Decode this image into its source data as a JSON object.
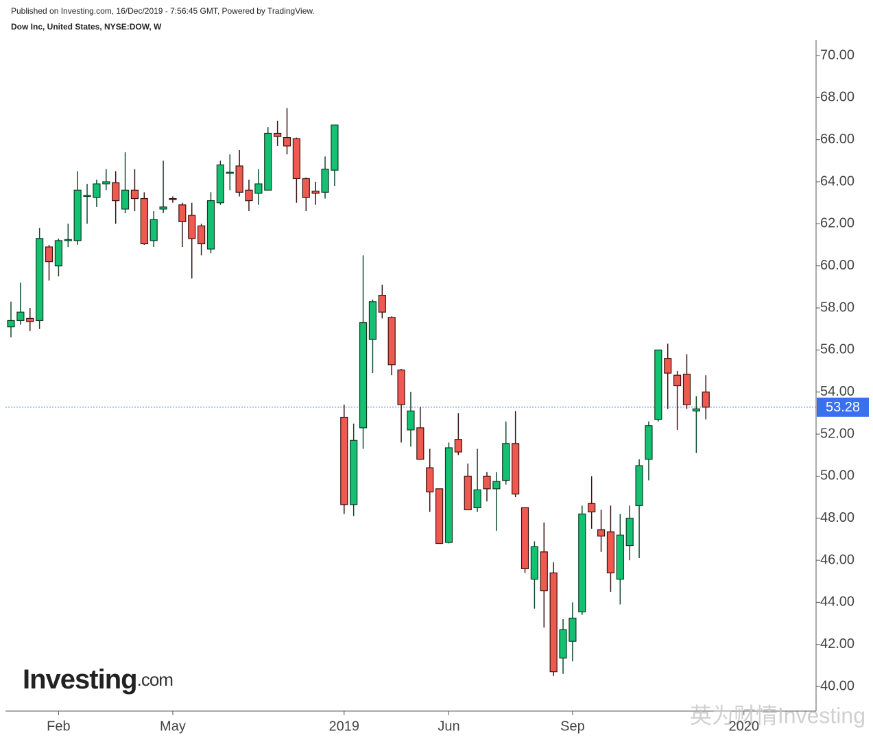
{
  "chart_data": {
    "type": "candlestick",
    "published": "Published on Investing.com, 16/Dec/2019 - 7:56:45 GMT, Powered by TradingView.",
    "title": "Dow Inc, United States, NYSE:DOW, W",
    "logo": "Investing",
    "logo_suffix": ".com",
    "watermark": "英为财情Investing",
    "up_color": "#14c172",
    "down_color": "#ef5a50",
    "last_price": 53.28,
    "last_price_color": "#3a6ff0",
    "ylim": [
      38.83,
      70.75
    ],
    "yticks": [
      {
        "value": 40,
        "label": "40.00"
      },
      {
        "value": 42,
        "label": "42.00"
      },
      {
        "value": 44,
        "label": "44.00"
      },
      {
        "value": 46,
        "label": "46.00"
      },
      {
        "value": 48,
        "label": "48.00"
      },
      {
        "value": 50,
        "label": "50.00"
      },
      {
        "value": 52,
        "label": "52.00"
      },
      {
        "value": 54,
        "label": "54.00"
      },
      {
        "value": 56,
        "label": "56.00"
      },
      {
        "value": 58,
        "label": "58.00"
      },
      {
        "value": 60,
        "label": "60.00"
      },
      {
        "value": 62,
        "label": "62.00"
      },
      {
        "value": 64,
        "label": "64.00"
      },
      {
        "value": 66,
        "label": "66.00"
      },
      {
        "value": 68,
        "label": "68.00"
      },
      {
        "value": 70,
        "label": "70.00"
      }
    ],
    "categories": [
      null,
      null,
      null,
      null,
      null,
      "Feb",
      null,
      null,
      null,
      null,
      null,
      null,
      null,
      null,
      null,
      null,
      null,
      "May",
      null,
      null,
      null,
      null,
      null,
      null,
      null,
      null,
      null,
      null,
      null,
      null,
      null,
      null,
      null,
      null,
      null,
      "2019",
      null,
      null,
      null,
      null,
      null,
      null,
      null,
      null,
      null,
      null,
      "Jun",
      null,
      null,
      null,
      null,
      null,
      null,
      null,
      null,
      null,
      null,
      null,
      null,
      "Sep",
      null,
      null,
      null,
      null,
      null,
      null,
      null,
      null,
      null,
      null,
      null,
      null,
      null,
      null,
      null,
      null,
      null,
      "2020",
      null,
      null,
      null,
      null,
      null,
      null,
      null
    ],
    "open": [
      57.1,
      57.4,
      57.5,
      57.4,
      60.9,
      60.0,
      61.2,
      61.2,
      63.3,
      63.25,
      63.9,
      63.95,
      62.7,
      63.6,
      63.2,
      61.2,
      62.7,
      63.2,
      62.9,
      62.4,
      61.9,
      60.8,
      63.0,
      64.4,
      64.75,
      63.6,
      63.45,
      63.6,
      66.3,
      66.1,
      66.05,
      64.15,
      63.55,
      63.5,
      64.55,
      52.8,
      48.65,
      52.3,
      56.5,
      58.6,
      57.55,
      55.05,
      52.2,
      52.3,
      50.4,
      49.4,
      46.85,
      51.75,
      50.0,
      48.5,
      50.0,
      49.4,
      49.8,
      51.55,
      48.5,
      45.1,
      46.4,
      45.4,
      41.35,
      42.15,
      43.55,
      48.7,
      47.45,
      47.35,
      45.1,
      46.7,
      48.6,
      50.8,
      52.7,
      55.6,
      54.8,
      54.85,
      53.1,
      54.0,
      null,
      null,
      null,
      null,
      null,
      null,
      null,
      null,
      null,
      null,
      null
    ],
    "high": [
      58.3,
      59.2,
      58.0,
      61.8,
      61.0,
      61.3,
      62.0,
      64.5,
      63.9,
      64.1,
      64.6,
      64.5,
      65.4,
      64.6,
      63.5,
      62.6,
      65.0,
      63.3,
      63.0,
      63.0,
      62.0,
      63.5,
      65.0,
      65.3,
      65.5,
      64.1,
      64.6,
      66.6,
      66.9,
      67.5,
      66.1,
      64.2,
      64.0,
      65.2,
      66.7,
      53.4,
      52.5,
      60.5,
      58.4,
      59.1,
      57.6,
      55.1,
      54.0,
      53.3,
      51.3,
      49.4,
      51.6,
      53.0,
      50.6,
      51.3,
      50.2,
      50.2,
      52.6,
      53.1,
      48.5,
      46.9,
      47.8,
      45.9,
      43.2,
      44.0,
      48.6,
      50.0,
      48.4,
      48.6,
      48.2,
      48.6,
      50.8,
      52.6,
      56.0,
      56.3,
      55.0,
      55.8,
      53.8,
      54.8,
      null,
      null,
      null,
      null,
      null,
      null,
      null,
      null,
      null,
      null,
      null
    ],
    "low": [
      56.6,
      57.2,
      56.9,
      57.0,
      59.3,
      59.5,
      60.9,
      61.0,
      62.0,
      62.8,
      63.6,
      62.0,
      62.5,
      62.6,
      61.0,
      60.9,
      62.5,
      63.0,
      60.9,
      59.4,
      60.5,
      60.6,
      62.9,
      63.6,
      63.3,
      62.6,
      62.9,
      63.6,
      65.7,
      65.3,
      63.0,
      62.6,
      62.9,
      63.2,
      63.8,
      48.2,
      48.1,
      51.3,
      54.9,
      57.5,
      54.8,
      51.6,
      51.4,
      50.8,
      48.3,
      46.8,
      46.8,
      51.0,
      48.4,
      48.3,
      48.8,
      47.4,
      49.6,
      49.0,
      45.4,
      43.7,
      42.8,
      40.5,
      40.6,
      41.2,
      43.4,
      47.5,
      46.4,
      44.5,
      43.9,
      46.0,
      46.1,
      49.8,
      52.6,
      53.2,
      52.2,
      53.2,
      51.1,
      52.7,
      null,
      null,
      null,
      null,
      null,
      null,
      null,
      null,
      null,
      null,
      null
    ],
    "close": [
      57.4,
      57.8,
      57.35,
      61.3,
      60.2,
      61.2,
      61.25,
      63.6,
      63.35,
      63.9,
      64.0,
      63.1,
      63.6,
      63.2,
      61.05,
      62.2,
      62.8,
      63.15,
      62.1,
      61.3,
      61.05,
      63.1,
      64.8,
      64.45,
      63.5,
      63.1,
      63.9,
      66.3,
      66.15,
      65.7,
      64.15,
      63.25,
      63.45,
      64.6,
      66.7,
      48.65,
      51.7,
      57.3,
      58.3,
      57.8,
      55.3,
      53.4,
      53.1,
      50.8,
      49.25,
      46.8,
      51.35,
      51.15,
      48.4,
      49.35,
      49.4,
      49.75,
      51.55,
      49.15,
      45.6,
      46.65,
      44.55,
      40.7,
      42.7,
      43.25,
      48.2,
      48.3,
      47.15,
      45.4,
      47.2,
      48.0,
      50.5,
      52.4,
      56.0,
      54.9,
      54.3,
      53.4,
      53.2,
      53.28,
      null,
      null,
      null,
      null,
      null,
      null,
      null,
      null,
      null,
      null,
      null
    ]
  }
}
